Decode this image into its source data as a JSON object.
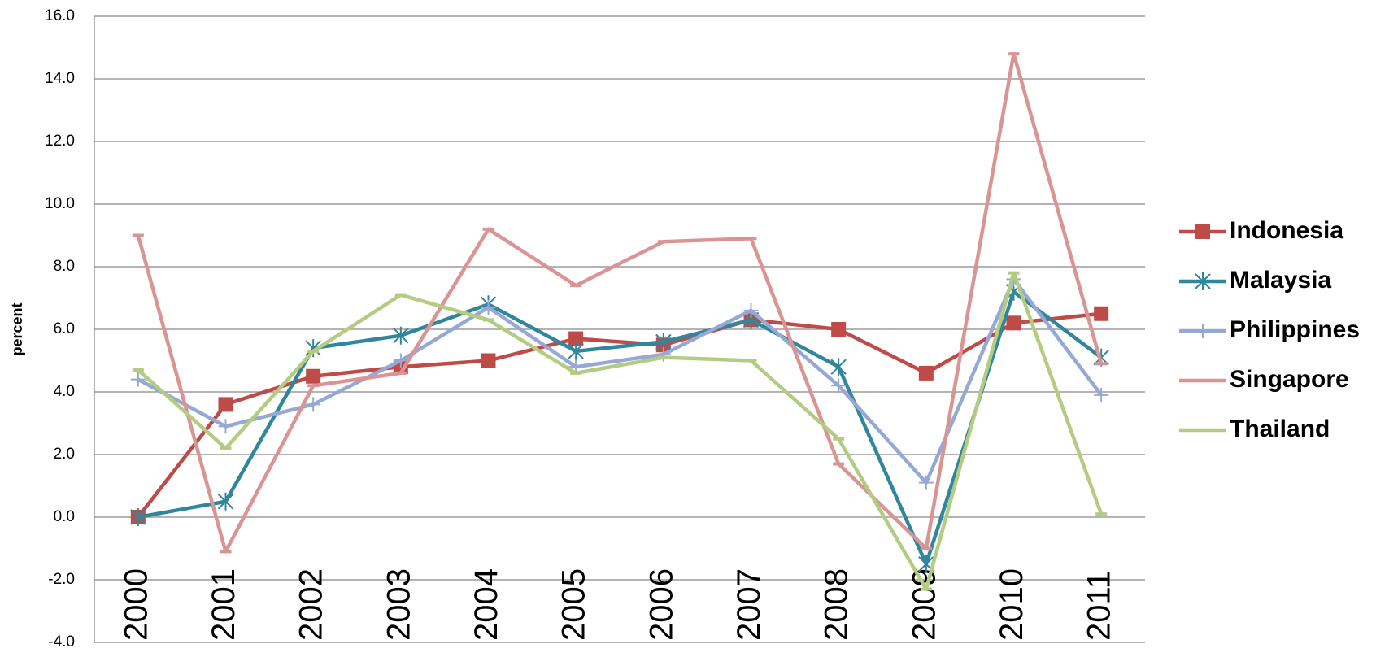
{
  "chart_data": {
    "type": "line",
    "y_label": "percent",
    "categories": [
      "2000",
      "2001",
      "2002",
      "2003",
      "2004",
      "2005",
      "2006",
      "2007",
      "2008",
      "2009",
      "2010",
      "2011"
    ],
    "ylim": [
      -4,
      16
    ],
    "yticks": [
      {
        "value": -4,
        "label": "-4.0"
      },
      {
        "value": -2,
        "label": "-2.0"
      },
      {
        "value": 0,
        "label": "0.0"
      },
      {
        "value": 2,
        "label": "2.0"
      },
      {
        "value": 4,
        "label": "4.0"
      },
      {
        "value": 6,
        "label": "6.0"
      },
      {
        "value": 8,
        "label": "8.0"
      },
      {
        "value": 10,
        "label": "10.0"
      },
      {
        "value": 12,
        "label": "12.0"
      },
      {
        "value": 14,
        "label": "14.0"
      },
      {
        "value": 16,
        "label": "16.0"
      }
    ],
    "grid": true,
    "legend": "right",
    "series": [
      {
        "name": "Indonesia",
        "color": "#be4b48",
        "marker": "square",
        "values": [
          0.0,
          3.6,
          4.5,
          4.8,
          5.0,
          5.7,
          5.5,
          6.3,
          6.0,
          4.6,
          6.2,
          6.5
        ]
      },
      {
        "name": "Malaysia",
        "color": "#31869b",
        "marker": "asterisk",
        "values": [
          0.0,
          0.5,
          5.4,
          5.8,
          6.8,
          5.3,
          5.6,
          6.3,
          4.8,
          -1.5,
          7.2,
          5.1
        ]
      },
      {
        "name": "Philippines",
        "color": "#95a9d4",
        "marker": "plus",
        "values": [
          4.4,
          2.9,
          3.6,
          5.0,
          6.7,
          4.8,
          5.2,
          6.6,
          4.2,
          1.1,
          7.6,
          3.9
        ]
      },
      {
        "name": "Singapore",
        "color": "#d99594",
        "marker": "dash",
        "values": [
          9.0,
          -1.1,
          4.2,
          4.6,
          9.2,
          7.4,
          8.8,
          8.9,
          1.7,
          -1.0,
          14.8,
          4.9
        ]
      },
      {
        "name": "Thailand",
        "color": "#b3cc82",
        "marker": "dash",
        "values": [
          4.7,
          2.2,
          5.3,
          7.1,
          6.3,
          4.6,
          5.1,
          5.0,
          2.5,
          -2.3,
          7.8,
          0.1
        ]
      }
    ]
  }
}
